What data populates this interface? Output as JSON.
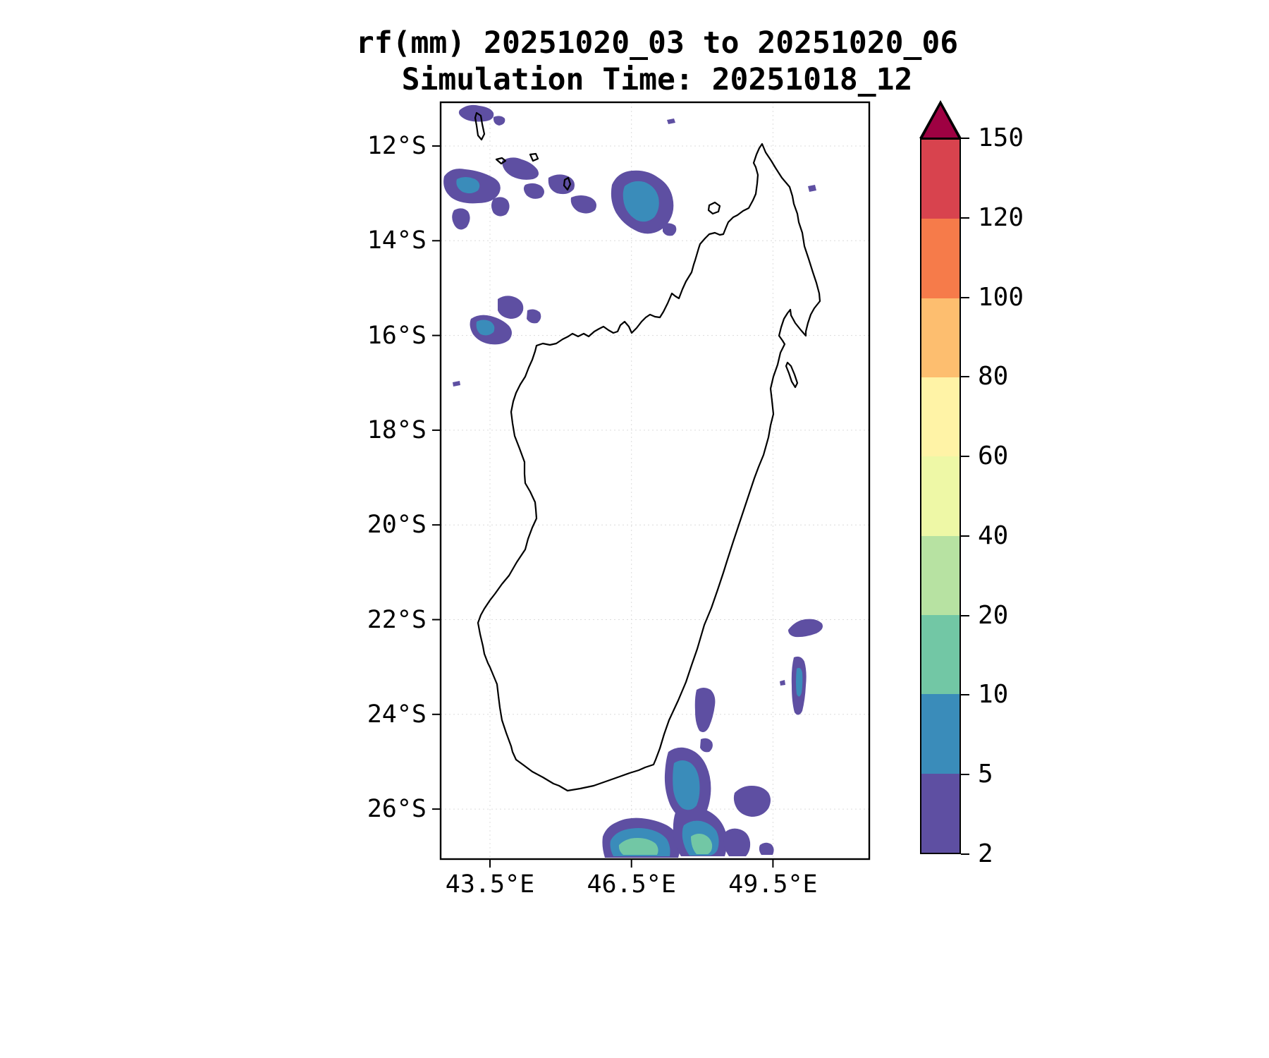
{
  "title": {
    "line1": "rf(mm) 20251020_03 to 20251020_06",
    "line2": "Simulation Time: 20251018_12"
  },
  "axes": {
    "lat_ticks": [
      "12°S",
      "14°S",
      "16°S",
      "18°S",
      "20°S",
      "22°S",
      "24°S",
      "26°S"
    ],
    "lon_ticks": [
      "43.5°E",
      "46.5°E",
      "49.5°E"
    ]
  },
  "colorbar": {
    "tick_labels": [
      "2",
      "5",
      "10",
      "20",
      "40",
      "60",
      "80",
      "100",
      "120",
      "150"
    ],
    "levels": [
      2,
      5,
      10,
      20,
      40,
      60,
      80,
      100,
      120,
      150
    ],
    "segment_colors": [
      "#5e4fa2",
      "#3a8cba",
      "#72c7a5",
      "#b7e2a2",
      "#eef8a6",
      "#fff3a6",
      "#fdbe6f",
      "#f67b4a",
      "#d8434e"
    ],
    "over_color": "#9e0142",
    "extend": "max"
  },
  "map": {
    "region": "Madagascar",
    "outline_color": "#000000",
    "background": "#ffffff"
  },
  "chart_data": {
    "type": "heatmap",
    "title": "rf(mm) 20251020_03 to 20251020_06",
    "subtitle": "Simulation Time: 20251018_12",
    "variable": "rainfall accumulation (mm)",
    "region": "Madagascar and surrounding ocean",
    "x_tick_labels": [
      "43.5°E",
      "46.5°E",
      "49.5°E"
    ],
    "y_tick_labels": [
      "12°S",
      "14°S",
      "16°S",
      "18°S",
      "20°S",
      "22°S",
      "24°S",
      "26°S"
    ],
    "lon_range_deg_e": [
      42.4,
      51.6
    ],
    "lat_range_deg_s": [
      11.1,
      27.1
    ],
    "colorbar_levels_mm": [
      2,
      5,
      10,
      20,
      40,
      60,
      80,
      100,
      120,
      150
    ],
    "colorbar_extend": "max",
    "legend_position": "right vertical colorbar",
    "grid": "faint graticule at tick positions",
    "rain_features": [
      {
        "area": "Comoros / NW Mozambique Channel cluster",
        "approx_lon_e": [
          42.5,
          46.2
        ],
        "approx_lat_s": [
          11.2,
          13.7
        ],
        "max_bin_mm": "5-10"
      },
      {
        "area": "offshore north of Nosy Be",
        "approx_lon_e": [
          45.9,
          47.4
        ],
        "approx_lat_s": [
          12.4,
          13.8
        ],
        "max_bin_mm": "5-10"
      },
      {
        "area": "west coast near 15.5-16°S",
        "approx_lon_e": [
          43.1,
          45.3
        ],
        "approx_lat_s": [
          15.1,
          16.2
        ],
        "max_bin_mm": "5-10"
      },
      {
        "area": "east coast offshore 22-24°S",
        "approx_lon_e": [
          49.7,
          51.0
        ],
        "approx_lat_s": [
          22.2,
          24.3
        ],
        "max_bin_mm": "5-10"
      },
      {
        "area": "southern Madagascar / south coast",
        "approx_lon_e": [
          45.8,
          49.3
        ],
        "approx_lat_s": [
          24.3,
          27.1
        ],
        "max_bin_mm": "10-20"
      }
    ]
  }
}
